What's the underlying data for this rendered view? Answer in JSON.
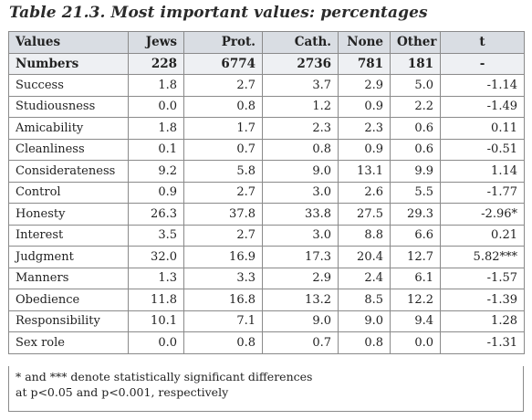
{
  "title": "Table 21.3. Most important values: percentages",
  "headers": [
    "Values",
    "Jews",
    "Prot.",
    "Cath.",
    "None",
    "Other",
    "t"
  ],
  "numbers_row": [
    "Numbers",
    "228",
    "6774",
    "2736",
    "781",
    "181",
    "-"
  ],
  "rows": [
    [
      "Success",
      "1.8",
      "2.7",
      "3.7",
      "2.9",
      "5.0",
      "-1.14"
    ],
    [
      "Studiousness",
      "0.0",
      "0.8",
      "1.2",
      "0.9",
      "2.2",
      "-1.49"
    ],
    [
      "Amicability",
      "1.8",
      "1.7",
      "2.3",
      "2.3",
      "0.6",
      "0.11"
    ],
    [
      "Cleanliness",
      "0.1",
      "0.7",
      "0.8",
      "0.9",
      "0.6",
      "-0.51"
    ],
    [
      "Considerateness",
      "9.2",
      "5.8",
      "9.0",
      "13.1",
      "9.9",
      "1.14"
    ],
    [
      "Control",
      "0.9",
      "2.7",
      "3.0",
      "2.6",
      "5.5",
      "-1.77"
    ],
    [
      "Honesty",
      "26.3",
      "37.8",
      "33.8",
      "27.5",
      "29.3",
      "-2.96*"
    ],
    [
      "Interest",
      "3.5",
      "2.7",
      "3.0",
      "8.8",
      "6.6",
      "0.21"
    ],
    [
      "Judgment",
      "32.0",
      "16.9",
      "17.3",
      "20.4",
      "12.7",
      "5.82***"
    ],
    [
      "Manners",
      "1.3",
      "3.3",
      "2.9",
      "2.4",
      "6.1",
      "-1.57"
    ],
    [
      "Obedience",
      "11.8",
      "16.8",
      "13.2",
      "8.5",
      "12.2",
      "-1.39"
    ],
    [
      "Responsibility",
      "10.1",
      "7.1",
      "9.0",
      "9.0",
      "9.4",
      "1.28"
    ],
    [
      "Sex role",
      "0.0",
      "0.8",
      "0.7",
      "0.8",
      "0.0",
      "-1.31"
    ]
  ],
  "note_line1": "* and *** denote statistically significant differences",
  "note_line2": "at p<0.05 and p<0.001, respectively"
}
